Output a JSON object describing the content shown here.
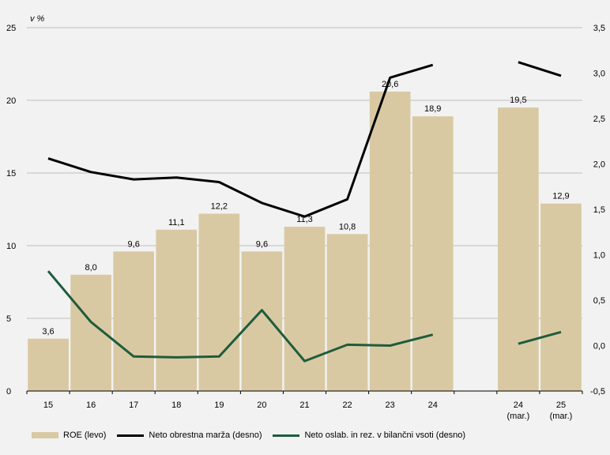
{
  "chart_data": {
    "type": "bar",
    "unit_label": "v %",
    "categories": [
      "15",
      "16",
      "17",
      "18",
      "19",
      "20",
      "21",
      "22",
      "23",
      "24",
      "",
      "24\n(mar.)",
      "25\n(mar.)"
    ],
    "y_left": {
      "lim": [
        0,
        25
      ],
      "ticks": [
        "0",
        "5",
        "10",
        "15",
        "20",
        "25"
      ]
    },
    "y_right": {
      "lim": [
        -0.5,
        3.5
      ],
      "ticks": [
        "-0,5",
        "0,0",
        "0,5",
        "1,0",
        "1,5",
        "2,0",
        "2,5",
        "3,0",
        "3,5"
      ]
    },
    "grid": true,
    "legend_position": "bottom",
    "series": [
      {
        "name": "ROE (levo)",
        "kind": "bar",
        "axis": "left",
        "color": "#d9c9a3",
        "values": [
          3.6,
          8.0,
          9.6,
          11.1,
          12.2,
          9.6,
          11.3,
          10.8,
          20.6,
          18.9,
          null,
          19.5,
          12.9
        ],
        "labels": [
          "3,6",
          "8,0",
          "9,6",
          "11,1",
          "12,2",
          "9,6",
          "11,3",
          "10,8",
          "20,6",
          "18,9",
          "",
          "19,5",
          "12,9"
        ]
      },
      {
        "name": "Neto obrestna marža (desno)",
        "kind": "line",
        "axis": "right",
        "color": "#000000",
        "values": [
          2.06,
          1.91,
          1.83,
          1.85,
          1.8,
          1.57,
          1.42,
          1.61,
          2.95,
          3.09,
          null,
          3.12,
          2.97
        ]
      },
      {
        "name": "Neto oslab. in rez. v bilančni vsoti (desno)",
        "kind": "line",
        "axis": "right",
        "color": "#1e5c3c",
        "values": [
          0.82,
          0.26,
          -0.12,
          -0.13,
          -0.12,
          0.39,
          -0.17,
          0.01,
          0.0,
          0.12,
          null,
          0.02,
          0.15
        ]
      }
    ]
  }
}
